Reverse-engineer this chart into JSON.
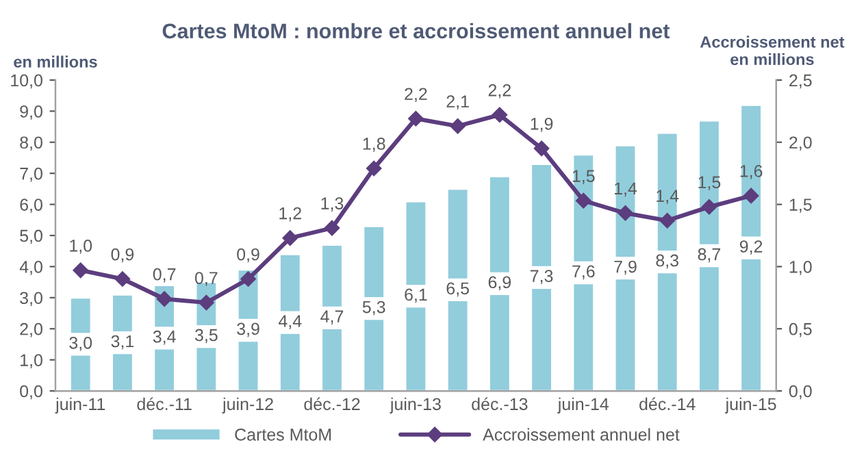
{
  "chart_data": {
    "type": "bar",
    "title": "Cartes MtoM : nombre et accroissement annuel net",
    "ylabel": "en millions",
    "y2label": "Accroissement net\nen millions",
    "categories": [
      "juin-11",
      null,
      "déc.-11",
      null,
      "juin-12",
      null,
      "déc.-12",
      null,
      "juin-13",
      null,
      "déc.-13",
      null,
      "juin-14",
      null,
      "déc.-14",
      null,
      "juin-15"
    ],
    "series": [
      {
        "name": "Cartes MtoM",
        "color": "#92cddc",
        "values": [
          3.0,
          3.1,
          3.4,
          3.5,
          3.9,
          4.4,
          4.7,
          5.3,
          6.1,
          6.5,
          6.9,
          7.3,
          7.6,
          7.9,
          8.3,
          8.7,
          9.2
        ],
        "value_labels": [
          "3,0",
          "3,1",
          "3,4",
          "3,5",
          "3,9",
          "4,4",
          "4,7",
          "5,3",
          "6,1",
          "6,5",
          "6,9",
          "7,3",
          "7,6",
          "7,9",
          "8,3",
          "8,7",
          "9,2"
        ]
      },
      {
        "name": "Accroissement annuel net",
        "type": "line",
        "axis": "y2",
        "color": "#5c3d7e",
        "marker": "diamond",
        "line_style": "solid",
        "values": [
          0.97,
          0.9,
          0.74,
          0.71,
          0.9,
          1.23,
          1.31,
          1.79,
          2.19,
          2.13,
          2.22,
          1.95,
          1.53,
          1.43,
          1.37,
          1.48,
          1.57
        ],
        "value_labels": [
          "1,0",
          "0,9",
          "0,7",
          "0,7",
          "0,9",
          "1,2",
          "1,3",
          "1,8",
          "2,2",
          "2,1",
          "2,2",
          "1,9",
          "1,5",
          "1,4",
          "1,4",
          "1,5",
          "1,6"
        ]
      }
    ],
    "ylim": [
      0,
      10
    ],
    "yticks": [
      {
        "value": 0,
        "label": "0,0"
      },
      {
        "value": 1,
        "label": "1,0"
      },
      {
        "value": 2,
        "label": "2,0"
      },
      {
        "value": 3,
        "label": "3,0"
      },
      {
        "value": 4,
        "label": "4,0"
      },
      {
        "value": 5,
        "label": "5,0"
      },
      {
        "value": 6,
        "label": "6,0"
      },
      {
        "value": 7,
        "label": "7,0"
      },
      {
        "value": 8,
        "label": "8,0"
      },
      {
        "value": 9,
        "label": "9,0"
      },
      {
        "value": 10,
        "label": "10,0"
      }
    ],
    "y2lim": [
      0,
      2.5
    ],
    "y2ticks": [
      {
        "value": 0,
        "label": "0,0"
      },
      {
        "value": 0.5,
        "label": "0,5"
      },
      {
        "value": 1,
        "label": "1,0"
      },
      {
        "value": 1.5,
        "label": "1,5"
      },
      {
        "value": 2,
        "label": "2,0"
      },
      {
        "value": 2.5,
        "label": "2,5"
      }
    ],
    "grid": false,
    "legend": "bottom"
  }
}
